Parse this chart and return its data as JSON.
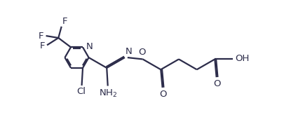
{
  "bg_color": "#ffffff",
  "line_color": "#2c2c4a",
  "bond_lw": 1.6,
  "font_size": 9.5,
  "figsize": [
    4.05,
    1.74
  ],
  "dpi": 100,
  "xlim": [
    0,
    4.05
  ],
  "ylim": [
    0,
    1.74
  ]
}
